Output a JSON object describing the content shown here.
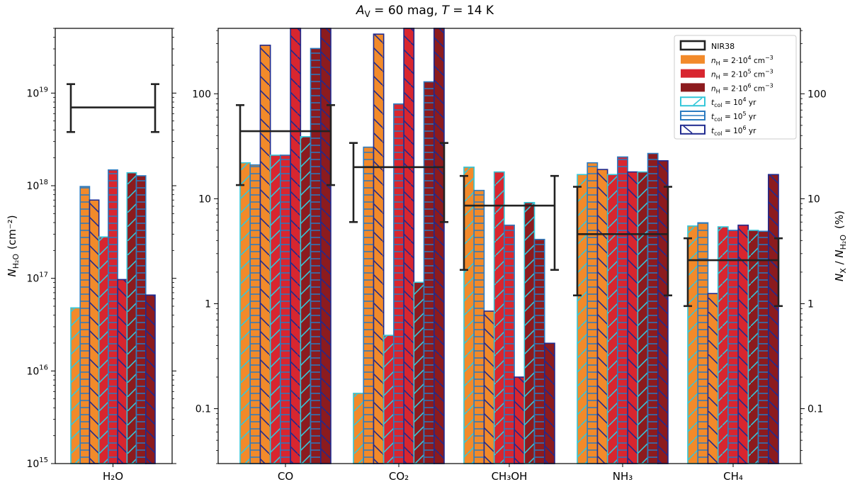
{
  "title": {
    "av_symbol": "A",
    "av_sub": "V",
    "av_value": " = 60 mag,  ",
    "t_symbol": "T",
    "t_value": " = 14 K"
  },
  "colors": {
    "n4": "#f28a2a",
    "n5": "#d8262f",
    "n6": "#8c1b1e",
    "t4": "#34c7d9",
    "t5": "#2b7bc0",
    "t6": "#1f2a8f",
    "obs": "#222222"
  },
  "legend": {
    "obs_label": "NIR38",
    "n4": {
      "pre": "n",
      "sub": "H",
      "mid": " = 2·10",
      "sup": "4",
      "post": " cm",
      "unit_sup": "−3"
    },
    "n5": {
      "pre": "n",
      "sub": "H",
      "mid": " = 2·10",
      "sup": "5",
      "post": " cm",
      "unit_sup": "−3"
    },
    "n6": {
      "pre": "n",
      "sub": "H",
      "mid": " = 2·10",
      "sup": "6",
      "post": " cm",
      "unit_sup": "−3"
    },
    "t4": {
      "pre": "t",
      "sub": "col",
      "mid": " = 10",
      "sup": "4",
      "post": " yr"
    },
    "t5": {
      "pre": "t",
      "sub": "col",
      "mid": " = 10",
      "sup": "5",
      "post": " yr"
    },
    "t6": {
      "pre": "t",
      "sub": "col",
      "mid": " = 10",
      "sup": "6",
      "post": " yr"
    }
  },
  "chart_data": [
    {
      "type": "bar",
      "panel": "left",
      "categories": [
        "H₂O"
      ],
      "yscale": "log",
      "ylim": [
        1000000000000000.0,
        5e+19
      ],
      "yticks": [
        {
          "value": 1000000000000000.0,
          "base": "10",
          "exp": "15"
        },
        {
          "value": 1e+16,
          "base": "10",
          "exp": "16"
        },
        {
          "value": 1e+17,
          "base": "10",
          "exp": "17"
        },
        {
          "value": 1e+18,
          "base": "10",
          "exp": "18"
        },
        {
          "value": 1e+19,
          "base": "10",
          "exp": "19"
        }
      ],
      "ylabel": {
        "main": "N",
        "sub": "H₂O",
        "unit": "(cm⁻²)"
      },
      "series_order": [
        "n4t4",
        "n4t5",
        "n4t6",
        "n5t4",
        "n5t5",
        "n5t6",
        "n6t4",
        "n6t5",
        "n6t6"
      ],
      "values": {
        "H₂O": [
          4.8e+16,
          9.8e+17,
          7e+17,
          2.8e+17,
          1.48e+18,
          9.7e+16,
          1.38e+18,
          1.28e+18,
          6.6e+16
        ]
      },
      "observed": {
        "H₂O": {
          "value": 7e+18,
          "low": 3.8e+18,
          "high": 1.25e+19
        }
      }
    },
    {
      "type": "bar",
      "panel": "right",
      "categories": [
        "CO",
        "CO₂",
        "CH₃OH",
        "NH₃",
        "CH₄"
      ],
      "yscale": "log",
      "ylim": [
        0.03,
        420
      ],
      "yticks": [
        {
          "value": 0.1,
          "label": "0.1"
        },
        {
          "value": 1,
          "label": "1"
        },
        {
          "value": 10,
          "label": "10"
        },
        {
          "value": 100,
          "label": "100"
        }
      ],
      "ylabel_right": {
        "num": "N",
        "num_sub": "X",
        "den": "N",
        "den_sub": "H₂O",
        "unit": "(%)"
      },
      "series_order": [
        "n4t4",
        "n4t5",
        "n4t6",
        "n5t4",
        "n5t5",
        "n5t6",
        "n6t4",
        "n6t5",
        "n6t6"
      ],
      "values": {
        "CO": [
          22,
          21,
          290,
          26,
          26,
          3000,
          39,
          270,
          3000
        ],
        "CO₂": [
          0.14,
          31,
          370,
          0.5,
          80,
          3000,
          1.6,
          130,
          3000
        ],
        "CH₃OH": [
          20,
          12,
          0.85,
          18,
          5.6,
          0.2,
          9.2,
          4.1,
          0.42
        ],
        "NH₃": [
          17,
          22,
          19,
          17,
          25,
          18,
          18,
          27,
          23
        ],
        "CH₄": [
          5.5,
          5.9,
          1.25,
          5.4,
          5.0,
          5.6,
          5.0,
          4.9,
          17
        ]
      },
      "observed": {
        "CO": {
          "value": 44,
          "low": 13.5,
          "high": 78
        },
        "CO₂": {
          "value": 20,
          "low": 6,
          "high": 34
        },
        "CH₃OH": {
          "value": 8.6,
          "low": 2.1,
          "high": 16.5
        },
        "NH₃": {
          "value": 4.6,
          "low": 1.2,
          "high": 13
        },
        "CH₄": {
          "value": 2.6,
          "low": 0.95,
          "high": 4.2
        }
      }
    }
  ]
}
